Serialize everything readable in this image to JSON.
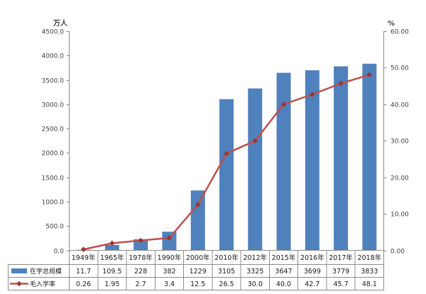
{
  "chart_data": {
    "type": "bar+line",
    "title": "",
    "categories": [
      "1949年",
      "1965年",
      "1978年",
      "1990年",
      "2000年",
      "2010年",
      "2012年",
      "2015年",
      "2016年",
      "2017年",
      "2018年"
    ],
    "series": [
      {
        "name": "在学总规模",
        "type": "bar",
        "axis": "left",
        "color": "#4f81bd",
        "values": [
          11.7,
          109.5,
          228,
          382,
          1229,
          3105,
          3325,
          3647,
          3699,
          3779,
          3833
        ],
        "display": [
          "11.7",
          "109.5",
          "228",
          "382",
          "1229",
          "3105",
          "3325",
          "3647",
          "3699",
          "3779",
          "3833"
        ]
      },
      {
        "name": "毛入学率",
        "type": "line",
        "axis": "right",
        "color": "#c0504d",
        "marker": "diamond",
        "marker_color": "#953735",
        "values": [
          0.26,
          1.95,
          2.7,
          3.4,
          12.5,
          26.5,
          30.0,
          40.0,
          42.7,
          45.7,
          48.1
        ],
        "display": [
          "0.26",
          "1.95",
          "2.7",
          "3.4",
          "12.5",
          "26.5",
          "30.0",
          "40.0",
          "42.7",
          "45.7",
          "48.1"
        ]
      }
    ],
    "left_axis": {
      "title": "万人",
      "min": 0,
      "max": 4500,
      "step": 500,
      "decimals": 1
    },
    "right_axis": {
      "title": "%",
      "min": 0,
      "max": 60,
      "step": 10,
      "decimals": 2
    },
    "grid": false,
    "legend_position": "data-table-left",
    "data_table_shown": true
  },
  "colors": {
    "bar": "#4f81bd",
    "line": "#c0504d",
    "marker": "#953735",
    "axis_line": "#8c8c8c",
    "table_border": "#8c8c8c",
    "tick_text": "#404040",
    "cell_text": "#1a1a1a"
  }
}
